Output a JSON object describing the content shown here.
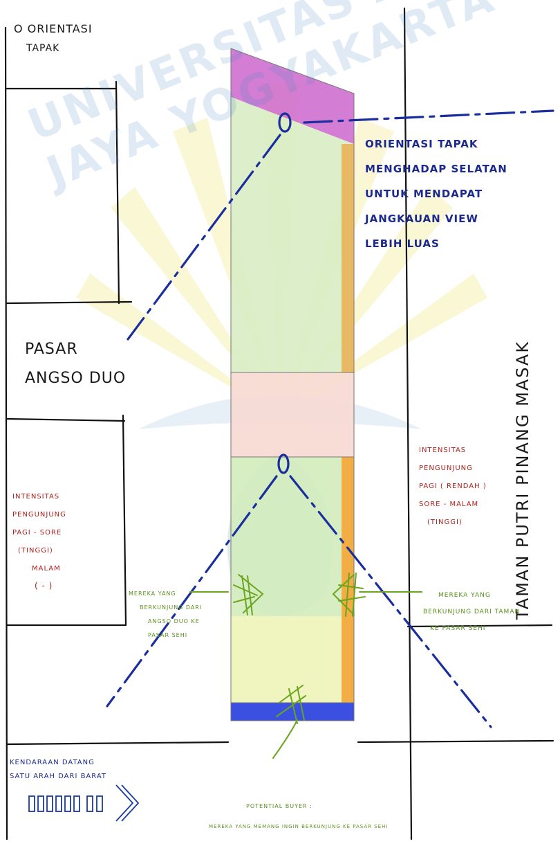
{
  "title": {
    "line1": "O ORIENTASI",
    "line2": "TAPAK"
  },
  "orientation_note": {
    "lines": [
      "ORIENTASI TAPAK",
      "MENGHADAP SELATAN",
      "UNTUK MENDAPAT",
      "JANGKAUAN VIEW",
      "LEBIH LUAS"
    ]
  },
  "left_place": {
    "line1": "PASAR",
    "line2": "ANGSO DUO"
  },
  "right_place": "TAMAN PUTRI PINANG MASAK",
  "left_intensity": {
    "lines": [
      "INTENSITAS",
      "PENGUNJUNG",
      "PAGI - SORE",
      "(TINGGI)",
      "MALAM",
      "( - )"
    ]
  },
  "right_intensity": {
    "lines": [
      "INTENSITAS",
      "PENGUNJUNG",
      "PAGI  ( RENDAH )",
      "SORE  -  MALAM",
      "(TINGGI)"
    ]
  },
  "left_visitors": {
    "lines": [
      "MEREKA YANG",
      "BERKUNJUNG DARI",
      "ANGSO DUO KE",
      "PASAR SEHI"
    ]
  },
  "right_visitors": {
    "lines": [
      "MEREKA YANG",
      "BERKUNJUNG DARI TAMAN",
      "KE PASAR SEHI"
    ]
  },
  "vehicles": {
    "line1": "KENDARAAN DATANG",
    "line2": "SATU ARAH DARI BARAT"
  },
  "buyer": {
    "line1": "POTENTIAL BUYER :",
    "line2": "MEREKA YANG MEMANG INGIN BERKUNJUNG KE PASAR SEHI"
  },
  "watermark": {
    "arc_text": "UNIVERSITAS ATMA JAYA YOGYAKARTA"
  },
  "colors": {
    "blue_axis": "#1a2e9e",
    "magenta_zone": "#cc66cc",
    "green_zone": "#d8ecc4",
    "pink_zone": "#f7d9d2",
    "lime_zone": "#f0f5c0",
    "orange_strip": "#f2ad45",
    "blue_strip": "#3b4fe0",
    "annotation_red": "#b3201b",
    "annotation_green": "#5a8f1a"
  }
}
